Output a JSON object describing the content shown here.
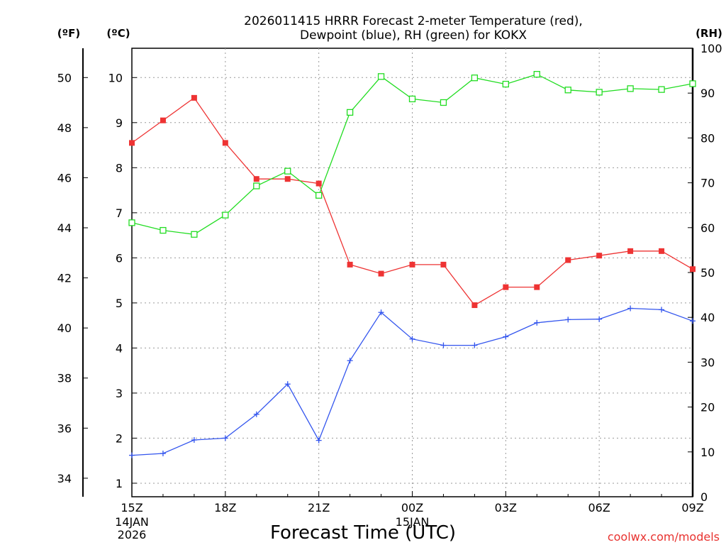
{
  "chart_data": {
    "type": "line",
    "title": [
      "2026011415 HRRR Forecast 2-meter Temperature (red),",
      "Dewpoint (blue), RH (green) for KOKX"
    ],
    "xlabel": "Forecast Time (UTC)",
    "credit": "coolwx.com/models",
    "x_hours": [
      0,
      1,
      2,
      3,
      4,
      5,
      6,
      7,
      8,
      9,
      10,
      11,
      12,
      13,
      14,
      15,
      16,
      17,
      18
    ],
    "x_ticks": [
      {
        "hour": 0,
        "label": "15Z",
        "sub": [
          "14JAN",
          "2026"
        ]
      },
      {
        "hour": 3,
        "label": "18Z",
        "sub": []
      },
      {
        "hour": 6,
        "label": "21Z",
        "sub": []
      },
      {
        "hour": 9,
        "label": "00Z",
        "sub": [
          "15JAN"
        ]
      },
      {
        "hour": 12,
        "label": "03Z",
        "sub": []
      },
      {
        "hour": 15,
        "label": "06Z",
        "sub": []
      },
      {
        "hour": 18,
        "label": "09Z",
        "sub": []
      }
    ],
    "axes": {
      "fahrenheit": {
        "unit_label": "(ºF)",
        "ticks": [
          "34",
          "36",
          "38",
          "40",
          "42",
          "44",
          "46",
          "48",
          "50"
        ]
      },
      "celsius": {
        "unit_label": "(ºC)",
        "ylim": [
          0.7,
          10.65
        ],
        "ticks": [
          "1",
          "2",
          "3",
          "4",
          "5",
          "6",
          "7",
          "8",
          "9",
          "10"
        ]
      },
      "rh": {
        "unit_label": "(RH)",
        "ylim": [
          0,
          100
        ],
        "ticks": [
          "0",
          "10",
          "20",
          "30",
          "40",
          "50",
          "60",
          "70",
          "80",
          "90",
          "100"
        ]
      }
    },
    "series": [
      {
        "name": "Temperature",
        "axis": "celsius",
        "color": "#ee3333",
        "marker": "filled-square",
        "values": [
          8.55,
          9.05,
          9.55,
          8.55,
          7.75,
          7.75,
          7.65,
          5.85,
          5.65,
          5.85,
          5.85,
          4.95,
          5.35,
          5.35,
          5.95,
          6.05,
          6.15,
          6.15,
          5.75
        ]
      },
      {
        "name": "Dewpoint",
        "axis": "celsius",
        "color": "#3355ee",
        "marker": "plus",
        "values": [
          1.62,
          1.66,
          1.96,
          2.0,
          2.53,
          3.2,
          1.95,
          3.72,
          4.79,
          4.2,
          4.06,
          4.06,
          4.25,
          4.56,
          4.63,
          4.64,
          4.88,
          4.85,
          4.6
        ]
      },
      {
        "name": "RH",
        "axis": "rh",
        "color": "#22dd22",
        "marker": "open-square",
        "values": [
          61.1,
          59.4,
          58.5,
          62.8,
          69.3,
          72.6,
          67.2,
          85.7,
          93.7,
          88.7,
          87.9,
          93.4,
          92.0,
          94.2,
          90.7,
          90.2,
          91.0,
          90.8,
          92.1
        ]
      }
    ]
  }
}
